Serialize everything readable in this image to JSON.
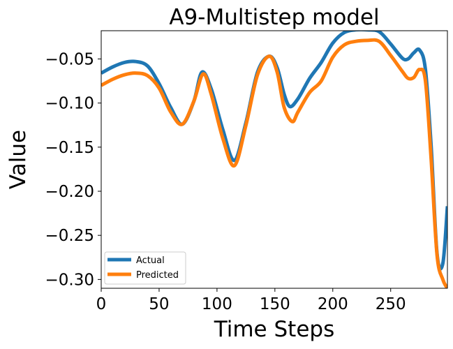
{
  "chart_data": {
    "type": "line",
    "title": "A9-Multistep model",
    "xlabel": "Time Steps",
    "ylabel": "Value",
    "xlim": [
      0,
      299
    ],
    "ylim": [
      -0.31,
      -0.018
    ],
    "xticks": [
      0,
      50,
      100,
      150,
      200,
      250
    ],
    "xtick_labels": [
      "0",
      "50",
      "100",
      "150",
      "200",
      "250"
    ],
    "yticks": [
      -0.05,
      -0.1,
      -0.15,
      -0.2,
      -0.25,
      -0.3
    ],
    "ytick_labels": [
      "−0.05",
      "−0.10",
      "−0.15",
      "−0.20",
      "−0.25",
      "−0.30"
    ],
    "legend": {
      "placement": "lower-left"
    },
    "grid": false,
    "series": [
      {
        "name": "Actual",
        "color": "#1f77b4",
        "x": [
          0,
          10,
          20,
          30,
          40,
          50,
          60,
          70,
          80,
          87,
          95,
          105,
          115,
          125,
          135,
          145,
          152,
          158,
          163,
          170,
          180,
          190,
          200,
          210,
          220,
          230,
          240,
          250,
          260,
          265,
          270,
          275,
          280,
          285,
          290,
          295,
          299
        ],
        "values": [
          -0.066,
          -0.059,
          -0.054,
          -0.053,
          -0.058,
          -0.078,
          -0.105,
          -0.124,
          -0.098,
          -0.065,
          -0.084,
          -0.13,
          -0.165,
          -0.122,
          -0.065,
          -0.047,
          -0.06,
          -0.09,
          -0.104,
          -0.095,
          -0.072,
          -0.054,
          -0.032,
          -0.02,
          -0.017,
          -0.017,
          -0.019,
          -0.033,
          -0.049,
          -0.05,
          -0.043,
          -0.04,
          -0.062,
          -0.15,
          -0.27,
          -0.282,
          -0.217
        ]
      },
      {
        "name": "Predicted",
        "color": "#ff7f0e",
        "x": [
          0,
          10,
          20,
          30,
          40,
          50,
          60,
          70,
          80,
          88,
          95,
          105,
          115,
          125,
          135,
          145,
          152,
          158,
          165,
          170,
          180,
          190,
          200,
          210,
          220,
          230,
          240,
          250,
          260,
          265,
          270,
          275,
          280,
          285,
          290,
          295,
          299
        ],
        "values": [
          -0.08,
          -0.073,
          -0.068,
          -0.066,
          -0.069,
          -0.083,
          -0.11,
          -0.124,
          -0.098,
          -0.067,
          -0.09,
          -0.14,
          -0.171,
          -0.125,
          -0.068,
          -0.047,
          -0.065,
          -0.105,
          -0.121,
          -0.11,
          -0.088,
          -0.075,
          -0.048,
          -0.034,
          -0.03,
          -0.029,
          -0.03,
          -0.046,
          -0.064,
          -0.072,
          -0.071,
          -0.062,
          -0.075,
          -0.165,
          -0.272,
          -0.3,
          -0.31
        ]
      }
    ]
  }
}
